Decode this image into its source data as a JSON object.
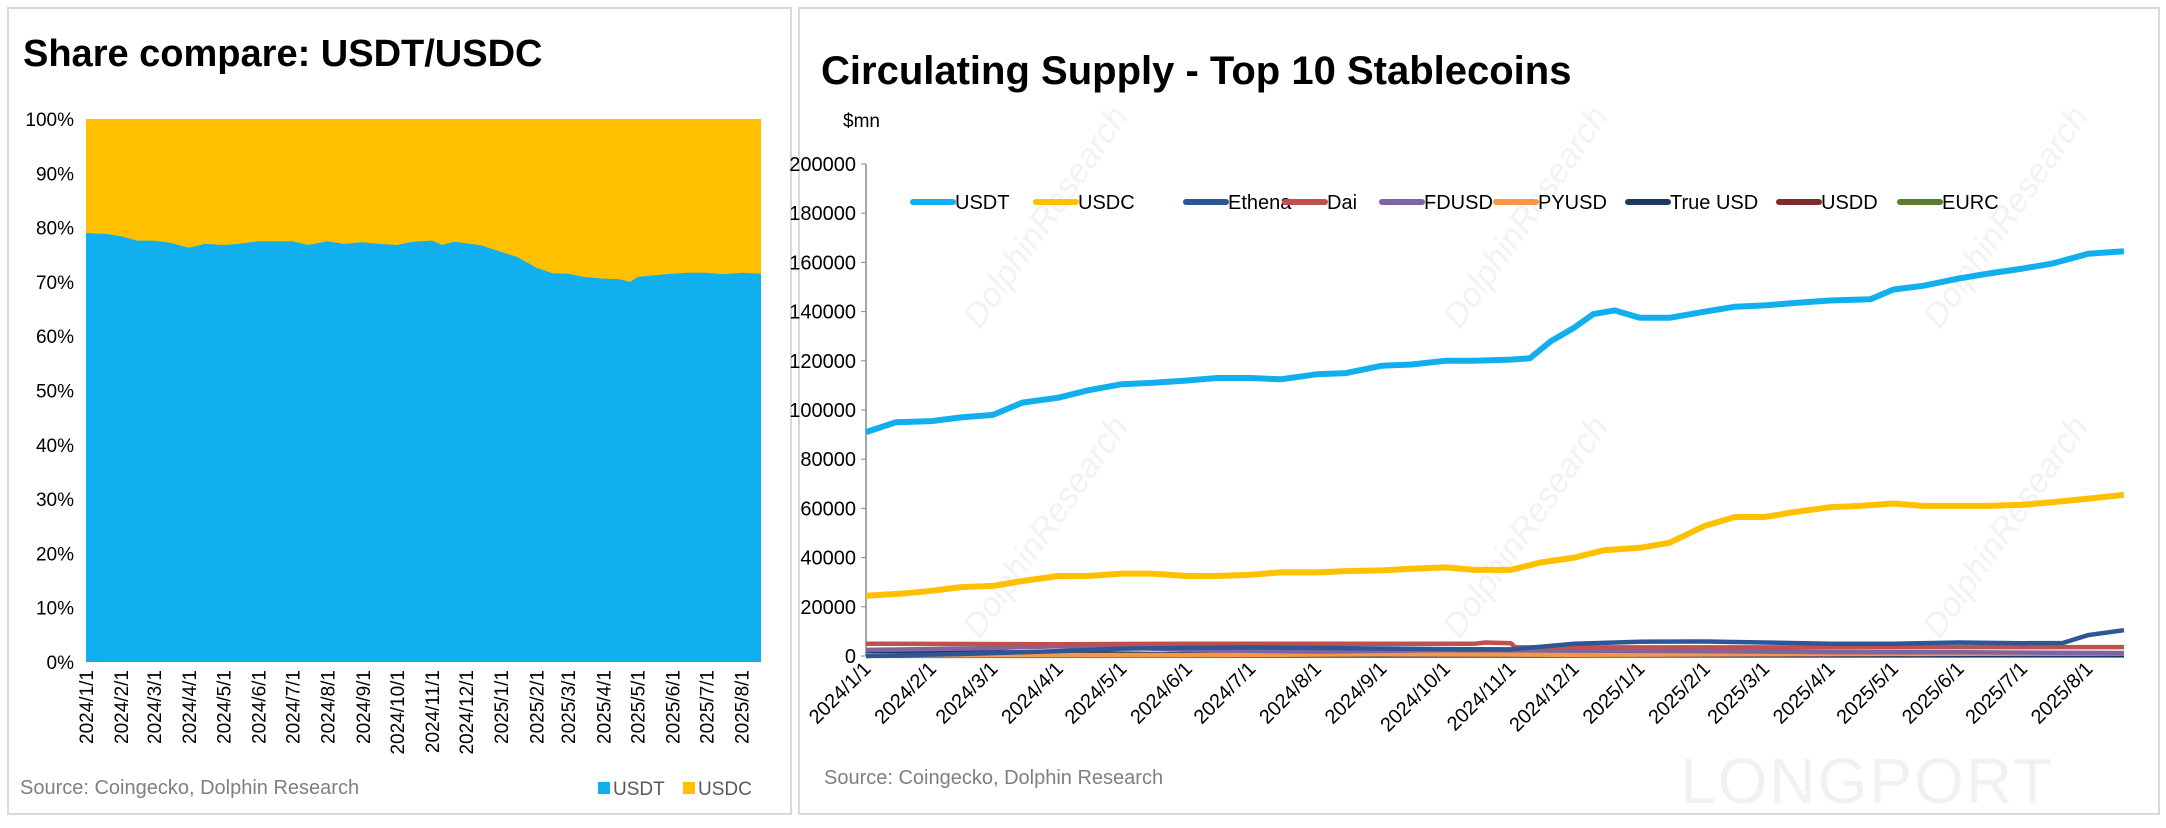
{
  "chart_data": [
    {
      "type": "area",
      "title": "Share compare: USDT/USDC",
      "source": "Source: Coingecko, Dolphin Research",
      "stacked_percent": true,
      "ylim": [
        0,
        100
      ],
      "y_ticks": [
        "0%",
        "10%",
        "20%",
        "30%",
        "40%",
        "50%",
        "60%",
        "70%",
        "80%",
        "90%",
        "100%"
      ],
      "x_ticks": [
        "2024/1/1",
        "2024/2/1",
        "2024/3/1",
        "2024/4/1",
        "2024/5/1",
        "2024/6/1",
        "2024/7/1",
        "2024/8/1",
        "2024/9/1",
        "2024/10/1",
        "2024/11/1",
        "2024/12/1",
        "2025/1/1",
        "2025/2/1",
        "2025/3/1",
        "2025/4/1",
        "2025/5/1",
        "2025/6/1",
        "2025/7/1",
        "2025/8/1"
      ],
      "legend_position": "bottom-right",
      "grid": false,
      "series": [
        {
          "name": "USDT",
          "color": "#12AFEE",
          "points": [
            [
              "2024-01-01",
              79
            ],
            [
              "2024-01-20",
              78.8
            ],
            [
              "2024-02-01",
              78.4
            ],
            [
              "2024-02-15",
              77.6
            ],
            [
              "2024-03-01",
              77.6
            ],
            [
              "2024-03-15",
              77.2
            ],
            [
              "2024-04-01",
              76.3
            ],
            [
              "2024-04-15",
              77
            ],
            [
              "2024-05-01",
              76.8
            ],
            [
              "2024-05-15",
              77
            ],
            [
              "2024-06-01",
              77.5
            ],
            [
              "2024-06-15",
              77.5
            ],
            [
              "2024-07-01",
              77.5
            ],
            [
              "2024-07-15",
              76.8
            ],
            [
              "2024-08-01",
              77.5
            ],
            [
              "2024-08-15",
              77
            ],
            [
              "2024-09-01",
              77.3
            ],
            [
              "2024-09-15",
              77
            ],
            [
              "2024-10-01",
              76.8
            ],
            [
              "2024-10-15",
              77.4
            ],
            [
              "2024-11-01",
              77.6
            ],
            [
              "2024-11-10",
              76.8
            ],
            [
              "2024-11-20",
              77.4
            ],
            [
              "2024-12-01",
              77.1
            ],
            [
              "2024-12-15",
              76.7
            ],
            [
              "2025-01-01",
              75.5
            ],
            [
              "2025-01-15",
              74.6
            ],
            [
              "2025-02-01",
              72.6
            ],
            [
              "2025-02-15",
              71.6
            ],
            [
              "2025-03-01",
              71.5
            ],
            [
              "2025-03-15",
              70.9
            ],
            [
              "2025-04-01",
              70.6
            ],
            [
              "2025-04-15",
              70.5
            ],
            [
              "2025-04-25",
              70.0
            ],
            [
              "2025-05-01",
              70.9
            ],
            [
              "2025-05-15",
              71.2
            ],
            [
              "2025-06-01",
              71.5
            ],
            [
              "2025-06-15",
              71.7
            ],
            [
              "2025-07-01",
              71.7
            ],
            [
              "2025-07-15",
              71.4
            ],
            [
              "2025-08-01",
              71.7
            ],
            [
              "2025-08-18",
              71.5
            ]
          ]
        },
        {
          "name": "USDC",
          "color": "#FFC000",
          "points": "remainder to 100%"
        }
      ]
    },
    {
      "type": "line",
      "title": "Circulating Supply - Top 10 Stablecoins",
      "ylabel": "$mn",
      "source": "Source: Coingecko, Dolphin Research",
      "ylim": [
        0,
        200000
      ],
      "y_ticks": [
        "0",
        "20000",
        "40000",
        "60000",
        "80000",
        "100000",
        "120000",
        "140000",
        "160000",
        "180000",
        "200000"
      ],
      "x_ticks": [
        "2024/1/1",
        "2024/2/1",
        "2024/3/1",
        "2024/4/1",
        "2024/5/1",
        "2024/6/1",
        "2024/7/1",
        "2024/8/1",
        "2024/9/1",
        "2024/10/1",
        "2024/11/1",
        "2024/12/1",
        "2025/1/1",
        "2025/2/1",
        "2025/3/1",
        "2025/4/1",
        "2025/5/1",
        "2025/6/1",
        "2025/7/1",
        "2025/8/1"
      ],
      "legend_position": "top",
      "grid": false,
      "series": [
        {
          "name": "USDT",
          "color": "#12AFEE",
          "points": [
            [
              "2024-01-01",
              91000
            ],
            [
              "2024-01-15",
              95000
            ],
            [
              "2024-02-01",
              95500
            ],
            [
              "2024-02-15",
              97000
            ],
            [
              "2024-03-01",
              98000
            ],
            [
              "2024-03-15",
              103000
            ],
            [
              "2024-04-01",
              105000
            ],
            [
              "2024-04-15",
              108000
            ],
            [
              "2024-05-01",
              110500
            ],
            [
              "2024-05-15",
              111000
            ],
            [
              "2024-06-01",
              112000
            ],
            [
              "2024-06-15",
              113000
            ],
            [
              "2024-07-01",
              113000
            ],
            [
              "2024-07-15",
              112500
            ],
            [
              "2024-08-01",
              114500
            ],
            [
              "2024-08-15",
              115000
            ],
            [
              "2024-09-01",
              118000
            ],
            [
              "2024-09-15",
              118500
            ],
            [
              "2024-10-01",
              120000
            ],
            [
              "2024-10-15",
              120000
            ],
            [
              "2024-11-01",
              120500
            ],
            [
              "2024-11-10",
              121000
            ],
            [
              "2024-11-20",
              128000
            ],
            [
              "2024-12-01",
              133500
            ],
            [
              "2024-12-10",
              139000
            ],
            [
              "2024-12-20",
              140500
            ],
            [
              "2025-01-01",
              137500
            ],
            [
              "2025-01-15",
              137500
            ],
            [
              "2025-02-01",
              140000
            ],
            [
              "2025-02-15",
              142000
            ],
            [
              "2025-03-01",
              142500
            ],
            [
              "2025-03-15",
              143500
            ],
            [
              "2025-04-01",
              144500
            ],
            [
              "2025-04-20",
              145000
            ],
            [
              "2025-05-01",
              149000
            ],
            [
              "2025-05-15",
              150500
            ],
            [
              "2025-06-01",
              153500
            ],
            [
              "2025-06-15",
              155500
            ],
            [
              "2025-07-01",
              157500
            ],
            [
              "2025-07-15",
              159500
            ],
            [
              "2025-08-01",
              163500
            ],
            [
              "2025-08-18",
              164500
            ]
          ]
        },
        {
          "name": "USDC",
          "color": "#FFC000",
          "points": [
            [
              "2024-01-01",
              24500
            ],
            [
              "2024-01-20",
              25500
            ],
            [
              "2024-02-01",
              26500
            ],
            [
              "2024-02-15",
              28000
            ],
            [
              "2024-03-01",
              28500
            ],
            [
              "2024-03-15",
              30500
            ],
            [
              "2024-04-01",
              32500
            ],
            [
              "2024-04-15",
              32500
            ],
            [
              "2024-05-01",
              33500
            ],
            [
              "2024-05-15",
              33500
            ],
            [
              "2024-06-01",
              32500
            ],
            [
              "2024-06-15",
              32500
            ],
            [
              "2024-07-01",
              33000
            ],
            [
              "2024-07-15",
              34000
            ],
            [
              "2024-08-01",
              34000
            ],
            [
              "2024-08-15",
              34500
            ],
            [
              "2024-09-01",
              34800
            ],
            [
              "2024-09-15",
              35500
            ],
            [
              "2024-10-01",
              36000
            ],
            [
              "2024-10-15",
              35000
            ],
            [
              "2024-11-01",
              35000
            ],
            [
              "2024-11-15",
              38000
            ],
            [
              "2024-12-01",
              40000
            ],
            [
              "2024-12-15",
              43000
            ],
            [
              "2025-01-01",
              44000
            ],
            [
              "2025-01-15",
              46000
            ],
            [
              "2025-02-01",
              53000
            ],
            [
              "2025-02-15",
              56500
            ],
            [
              "2025-03-01",
              56500
            ],
            [
              "2025-03-15",
              58500
            ],
            [
              "2025-04-01",
              60500
            ],
            [
              "2025-04-15",
              61000
            ],
            [
              "2025-05-01",
              62000
            ],
            [
              "2025-05-15",
              61000
            ],
            [
              "2025-06-01",
              61000
            ],
            [
              "2025-06-15",
              61000
            ],
            [
              "2025-07-01",
              61500
            ],
            [
              "2025-07-15",
              62500
            ],
            [
              "2025-08-01",
              64000
            ],
            [
              "2025-08-18",
              65500
            ]
          ]
        },
        {
          "name": "Ethena",
          "color": "#2F5597",
          "points": [
            [
              "2024-01-01",
              0
            ],
            [
              "2024-02-15",
              800
            ],
            [
              "2024-04-01",
              2000
            ],
            [
              "2024-05-01",
              3000
            ],
            [
              "2024-07-01",
              3500
            ],
            [
              "2024-10-01",
              2800
            ],
            [
              "2024-11-01",
              2700
            ],
            [
              "2024-12-01",
              5000
            ],
            [
              "2025-01-01",
              5800
            ],
            [
              "2025-02-01",
              5900
            ],
            [
              "2025-03-01",
              5500
            ],
            [
              "2025-04-01",
              5000
            ],
            [
              "2025-05-01",
              5000
            ],
            [
              "2025-06-01",
              5500
            ],
            [
              "2025-07-01",
              5200
            ],
            [
              "2025-07-20",
              5300
            ],
            [
              "2025-08-01",
              8500
            ],
            [
              "2025-08-18",
              10500
            ]
          ]
        },
        {
          "name": "Dai",
          "color": "#C0504D",
          "points": [
            [
              "2024-01-01",
              5000
            ],
            [
              "2024-04-01",
              4800
            ],
            [
              "2024-06-01",
              5000
            ],
            [
              "2024-10-15",
              5000
            ],
            [
              "2024-10-20",
              5500
            ],
            [
              "2024-11-01",
              5200
            ],
            [
              "2024-11-03",
              3500
            ],
            [
              "2024-12-01",
              3500
            ],
            [
              "2025-04-01",
              3500
            ],
            [
              "2025-06-01",
              3600
            ],
            [
              "2025-08-18",
              3600
            ]
          ]
        },
        {
          "name": "FDUSD",
          "color": "#8064A2",
          "points": [
            [
              "2024-01-01",
              2500
            ],
            [
              "2024-03-01",
              3200
            ],
            [
              "2024-04-01",
              4000
            ],
            [
              "2024-05-01",
              3500
            ],
            [
              "2024-06-01",
              2500
            ],
            [
              "2024-08-01",
              1800
            ],
            [
              "2024-10-01",
              2400
            ],
            [
              "2024-12-01",
              2200
            ],
            [
              "2025-02-01",
              2000
            ],
            [
              "2025-04-01",
              1600
            ],
            [
              "2025-06-01",
              1500
            ],
            [
              "2025-08-18",
              1200
            ]
          ]
        },
        {
          "name": "PYUSD",
          "color": "#F79646",
          "points": [
            [
              "2024-01-01",
              300
            ],
            [
              "2024-06-01",
              400
            ],
            [
              "2024-09-01",
              700
            ],
            [
              "2024-12-01",
              500
            ],
            [
              "2025-03-01",
              700
            ],
            [
              "2025-06-01",
              900
            ],
            [
              "2025-08-18",
              1000
            ]
          ]
        },
        {
          "name": "True USD",
          "color": "#1F3864",
          "points": [
            [
              "2024-01-01",
              2000
            ],
            [
              "2024-03-01",
              1500
            ],
            [
              "2024-06-01",
              700
            ],
            [
              "2024-12-01",
              500
            ],
            [
              "2025-08-18",
              500
            ]
          ]
        },
        {
          "name": "USDD",
          "color": "#7B2C2C",
          "points": [
            [
              "2024-01-01",
              700
            ],
            [
              "2024-12-01",
              700
            ],
            [
              "2025-08-18",
              600
            ]
          ]
        },
        {
          "name": "EURC",
          "color": "#5A7A2E",
          "points": [
            [
              "2024-01-01",
              50
            ],
            [
              "2025-08-18",
              200
            ]
          ]
        }
      ]
    }
  ],
  "watermark": {
    "brand": "LONGPORT",
    "research": "DolphinResearch"
  }
}
